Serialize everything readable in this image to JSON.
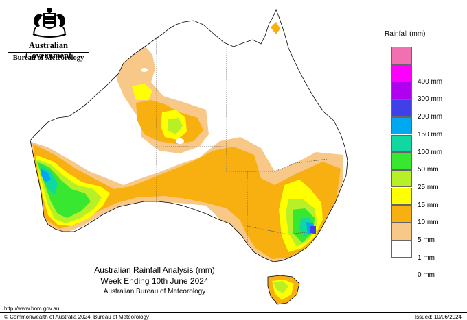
{
  "header": {
    "government": "Australian Government",
    "agency": "Bureau of Meteorology"
  },
  "map": {
    "region": "Australia",
    "outline_color": "#000000",
    "state_border_color": "#555555",
    "state_border_style": "dotted",
    "background": "#ffffff"
  },
  "legend": {
    "title": "Rainfall (mm)",
    "items": [
      {
        "label": "",
        "color": "#f070b0"
      },
      {
        "label": "400 mm",
        "color": "#ff00ff"
      },
      {
        "label": "300 mm",
        "color": "#b000f0"
      },
      {
        "label": "200 mm",
        "color": "#4040e8"
      },
      {
        "label": "150 mm",
        "color": "#00a8f0"
      },
      {
        "label": "100 mm",
        "color": "#10d8a0"
      },
      {
        "label": "50 mm",
        "color": "#38e830"
      },
      {
        "label": "25 mm",
        "color": "#b8f028"
      },
      {
        "label": "15 mm",
        "color": "#ffff00"
      },
      {
        "label": "10 mm",
        "color": "#f8b010"
      },
      {
        "label": "5 mm",
        "color": "#f8c888"
      },
      {
        "label": "1 mm",
        "color": "#ffffff"
      },
      {
        "label": "0 mm",
        "color": null
      }
    ]
  },
  "caption": {
    "line1": "Australian Rainfall Analysis (mm)",
    "line2": "Week Ending 10th June 2024",
    "line3": "Australian Bureau of Meteorology"
  },
  "footer": {
    "url": "http://www.bom.gov.au",
    "copyright": "© Commonwealth of Australia 2024, Bureau of Meteorology",
    "issued": "Issued: 10/06/2024"
  }
}
